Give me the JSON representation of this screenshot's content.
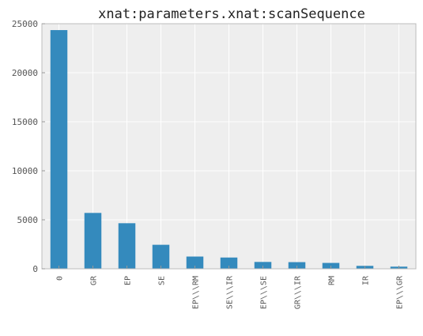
{
  "chart_data": {
    "type": "bar",
    "title": "xnat:parameters.xnat:scanSequence",
    "xlabel": "",
    "ylabel": "",
    "categories": [
      "0",
      "GR",
      "EP",
      "SE",
      "EP\\\\\\RM",
      "SE\\\\\\IR",
      "EP\\\\\\SE",
      "GR\\\\\\IR",
      "RM",
      "IR",
      "EP\\\\\\GR"
    ],
    "values": [
      24350,
      5700,
      4650,
      2450,
      1250,
      1150,
      700,
      680,
      600,
      300,
      220
    ],
    "ylim": [
      0,
      25000
    ],
    "yticks": [
      "0",
      "5000",
      "10000",
      "15000",
      "20000",
      "25000"
    ],
    "grid": true,
    "legend": "none",
    "colors": {
      "bar": "#348ABD",
      "plot_background": "#EEEEEE",
      "grid": "#FFFFFF",
      "frame": "#BCBCBC"
    }
  }
}
